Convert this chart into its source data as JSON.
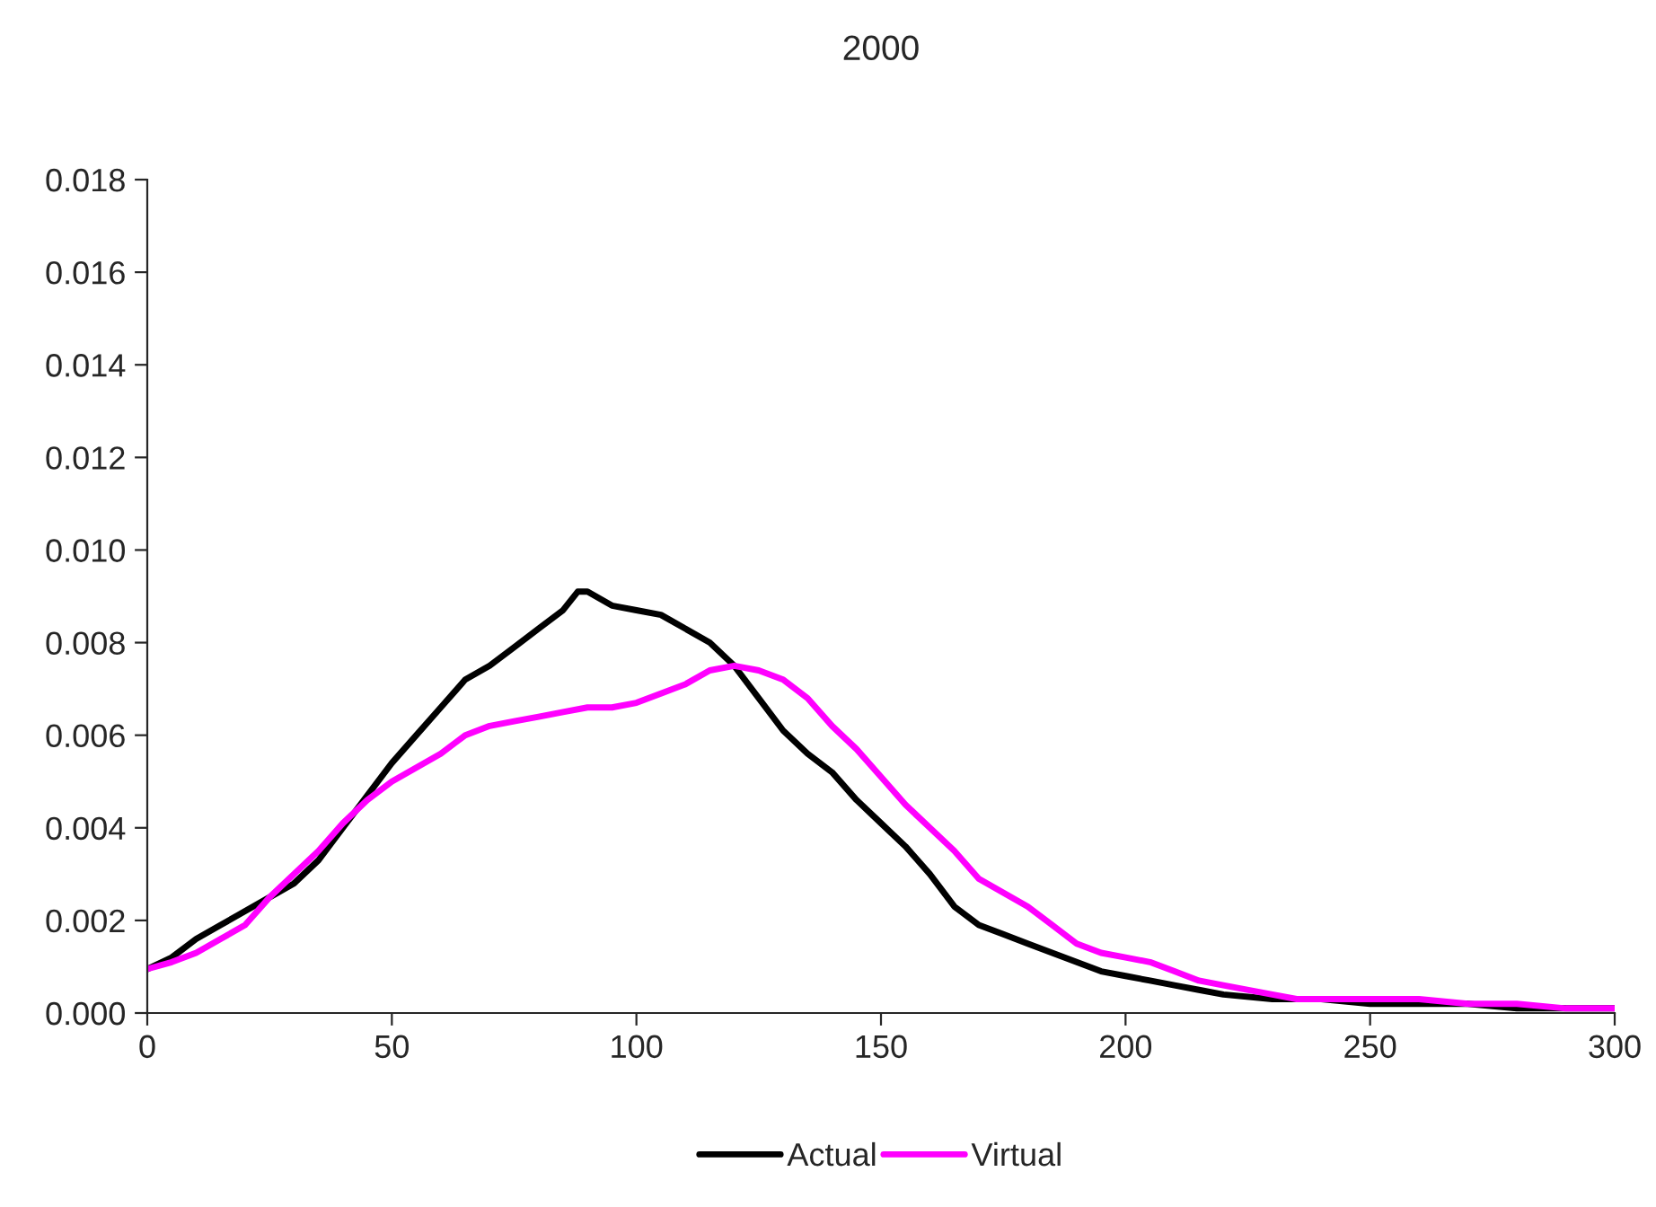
{
  "chart_data": {
    "type": "line",
    "title": "2000",
    "legend": "bottom",
    "grid": false,
    "marker": "none",
    "line_style": "solid",
    "xlim": [
      0,
      300
    ],
    "xticks": [
      0,
      50,
      100,
      150,
      200,
      250,
      300
    ],
    "ylim": [
      0,
      0.018
    ],
    "yticks": [
      {
        "value": 0,
        "label": "0.000"
      },
      {
        "value": 0.002,
        "label": "0.002"
      },
      {
        "value": 0.004,
        "label": "0.004"
      },
      {
        "value": 0.006,
        "label": "0.006"
      },
      {
        "value": 0.008,
        "label": "0.008"
      },
      {
        "value": 0.01,
        "label": "0.010"
      },
      {
        "value": 0.012,
        "label": "0.012"
      },
      {
        "value": 0.014,
        "label": "0.014"
      },
      {
        "value": 0.016,
        "label": "0.016"
      },
      {
        "value": 0.018,
        "label": "0.018"
      }
    ],
    "series": [
      {
        "name": "Actual",
        "color": "#000000",
        "x": [
          0,
          5,
          10,
          15,
          20,
          25,
          30,
          35,
          40,
          45,
          50,
          55,
          60,
          65,
          70,
          75,
          80,
          85,
          88,
          90,
          95,
          100,
          105,
          110,
          115,
          120,
          125,
          130,
          135,
          140,
          145,
          150,
          155,
          160,
          165,
          170,
          175,
          180,
          185,
          190,
          195,
          200,
          205,
          210,
          215,
          220,
          230,
          240,
          250,
          260,
          270,
          280,
          290,
          300
        ],
        "values": [
          0.00095,
          0.0012,
          0.0016,
          0.0019,
          0.0022,
          0.0025,
          0.0028,
          0.0033,
          0.004,
          0.0047,
          0.0054,
          0.006,
          0.0066,
          0.0072,
          0.0075,
          0.0079,
          0.0083,
          0.0087,
          0.0091,
          0.0091,
          0.0088,
          0.0087,
          0.0086,
          0.0083,
          0.008,
          0.0075,
          0.0068,
          0.0061,
          0.0056,
          0.0052,
          0.0046,
          0.0041,
          0.0036,
          0.003,
          0.0023,
          0.0019,
          0.0017,
          0.0015,
          0.0013,
          0.0011,
          0.0009,
          0.0008,
          0.0007,
          0.0006,
          0.0005,
          0.0004,
          0.0003,
          0.0003,
          0.0002,
          0.0002,
          0.0002,
          0.0001,
          0.0001,
          0.0001
        ]
      },
      {
        "name": "Virtual",
        "color": "#ff00ff",
        "x": [
          0,
          5,
          10,
          15,
          20,
          25,
          30,
          35,
          40,
          45,
          50,
          55,
          60,
          65,
          70,
          75,
          80,
          85,
          90,
          95,
          100,
          105,
          110,
          115,
          120,
          125,
          130,
          135,
          140,
          145,
          150,
          155,
          160,
          165,
          170,
          175,
          180,
          185,
          190,
          195,
          200,
          205,
          210,
          215,
          220,
          230,
          235,
          240,
          250,
          260,
          270,
          280,
          290,
          300
        ],
        "values": [
          0.00095,
          0.0011,
          0.0013,
          0.0016,
          0.0019,
          0.0025,
          0.003,
          0.0035,
          0.0041,
          0.0046,
          0.005,
          0.0053,
          0.0056,
          0.006,
          0.0062,
          0.0063,
          0.0064,
          0.0065,
          0.0066,
          0.0066,
          0.0067,
          0.0069,
          0.0071,
          0.0074,
          0.0075,
          0.0074,
          0.0072,
          0.0068,
          0.0062,
          0.0057,
          0.0051,
          0.0045,
          0.004,
          0.0035,
          0.0029,
          0.0026,
          0.0023,
          0.0019,
          0.0015,
          0.0013,
          0.0012,
          0.0011,
          0.0009,
          0.0007,
          0.0006,
          0.0004,
          0.0003,
          0.0003,
          0.0003,
          0.0003,
          0.0002,
          0.0002,
          0.0001,
          0.0001
        ]
      }
    ]
  }
}
